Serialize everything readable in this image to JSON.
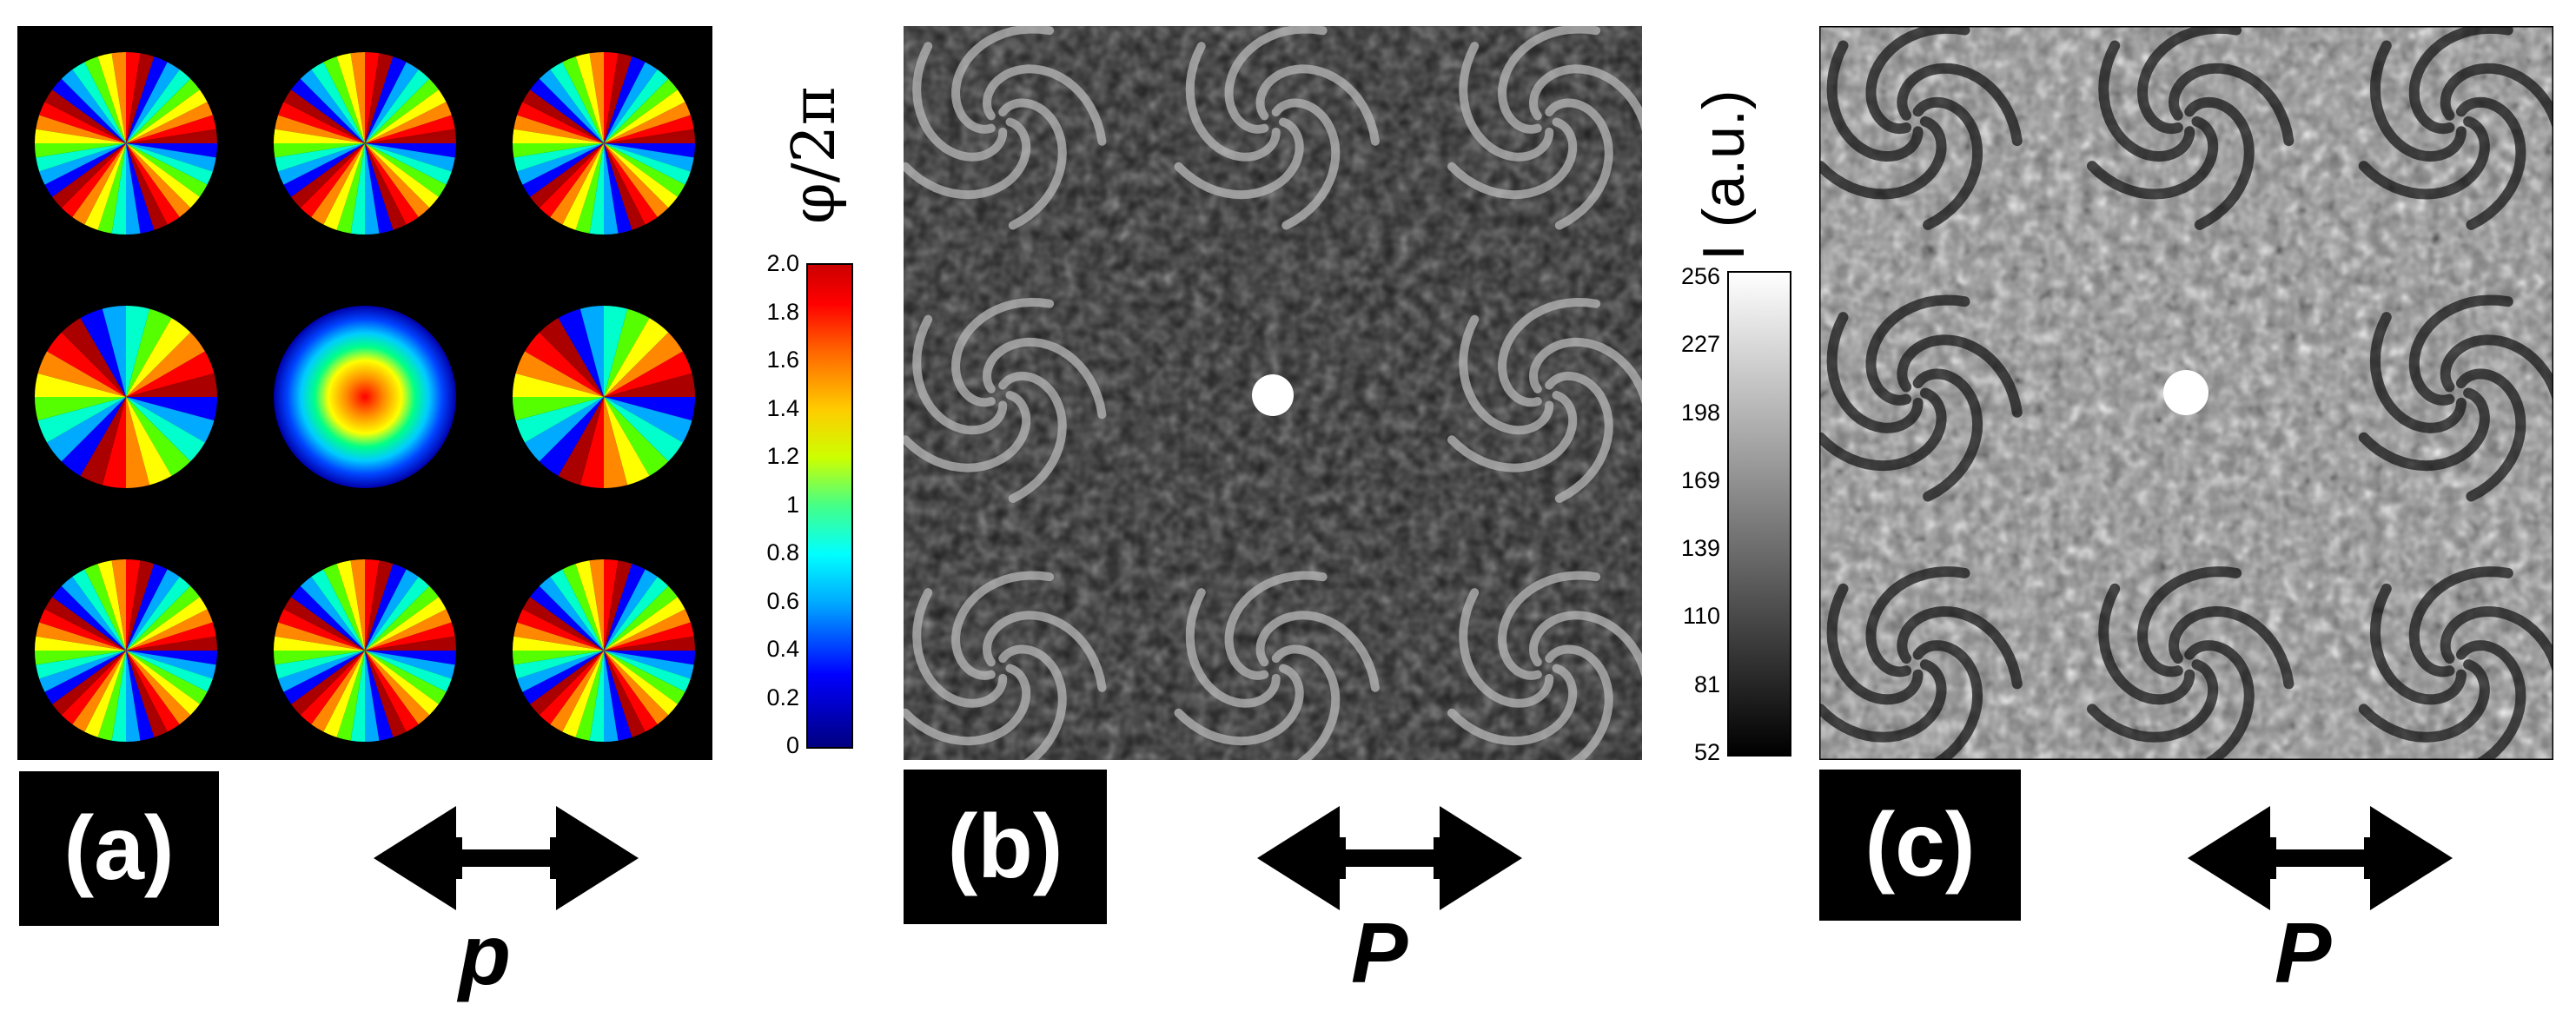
{
  "panels": {
    "a": {
      "label": "(a)",
      "polarization": "p"
    },
    "b": {
      "label": "(b)",
      "polarization": "P"
    },
    "c": {
      "label": "(c)",
      "polarization": "P"
    }
  },
  "phase_colorbar": {
    "title": "φ/2π",
    "ticks": [
      "2.0",
      "1.8",
      "1.6",
      "1.4",
      "1.2",
      "1",
      "0.8",
      "0.6",
      "0.4",
      "0.2",
      "0"
    ],
    "range": [
      0,
      2
    ],
    "colormap": [
      "#00008f",
      "#0000ff",
      "#00ffff",
      "#7fff7f",
      "#ffff00",
      "#ff7f00",
      "#ff0000",
      "#800000"
    ]
  },
  "intensity_colorbar": {
    "title": "I (a.u.)",
    "ticks": [
      "256",
      "227",
      "198",
      "169",
      "139",
      "110",
      "81",
      "52"
    ],
    "range": [
      52,
      256
    ]
  },
  "phase_grid": {
    "rows": 3,
    "cols": 3,
    "center": "concentric"
  },
  "colors": {
    "background": "#ffffff",
    "panel_bg": "#000000",
    "label_text": "#ffffff"
  }
}
